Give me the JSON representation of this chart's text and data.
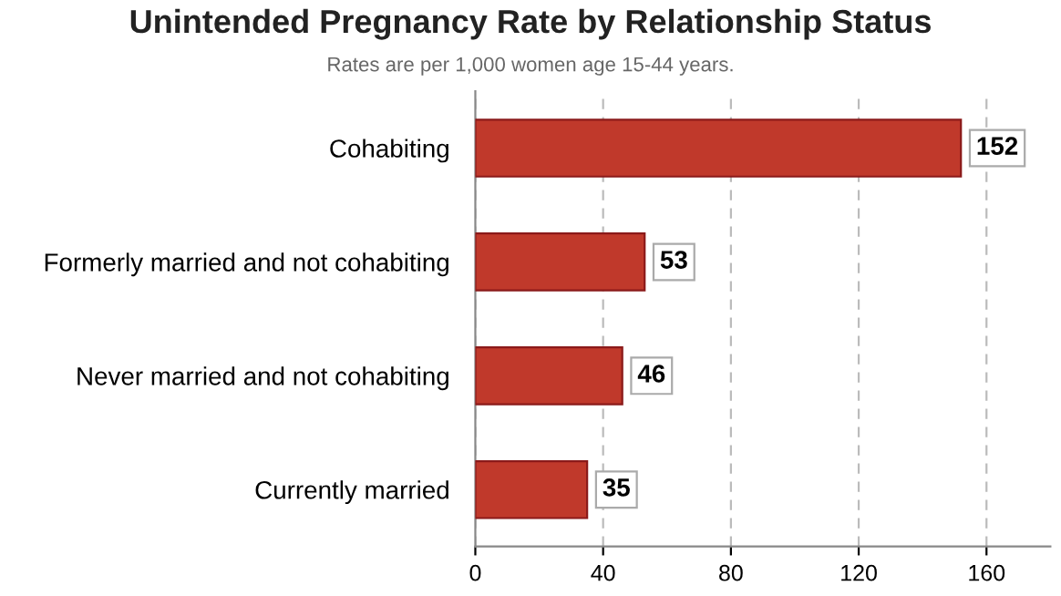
{
  "chart_data": {
    "type": "bar",
    "orientation": "horizontal",
    "title": "Unintended Pregnancy Rate by Relationship Status",
    "subtitle": "Rates are per 1,000 women age 15-44 years.",
    "categories": [
      "Cohabiting",
      "Formerly married and not cohabiting",
      "Never married and not cohabiting",
      "Currently married"
    ],
    "values": [
      152,
      53,
      46,
      35
    ],
    "color": "#c0392b",
    "xlim": [
      0,
      180
    ],
    "xticks": [
      0,
      40,
      80,
      120,
      160
    ],
    "grid": "x",
    "data_labels": true
  }
}
